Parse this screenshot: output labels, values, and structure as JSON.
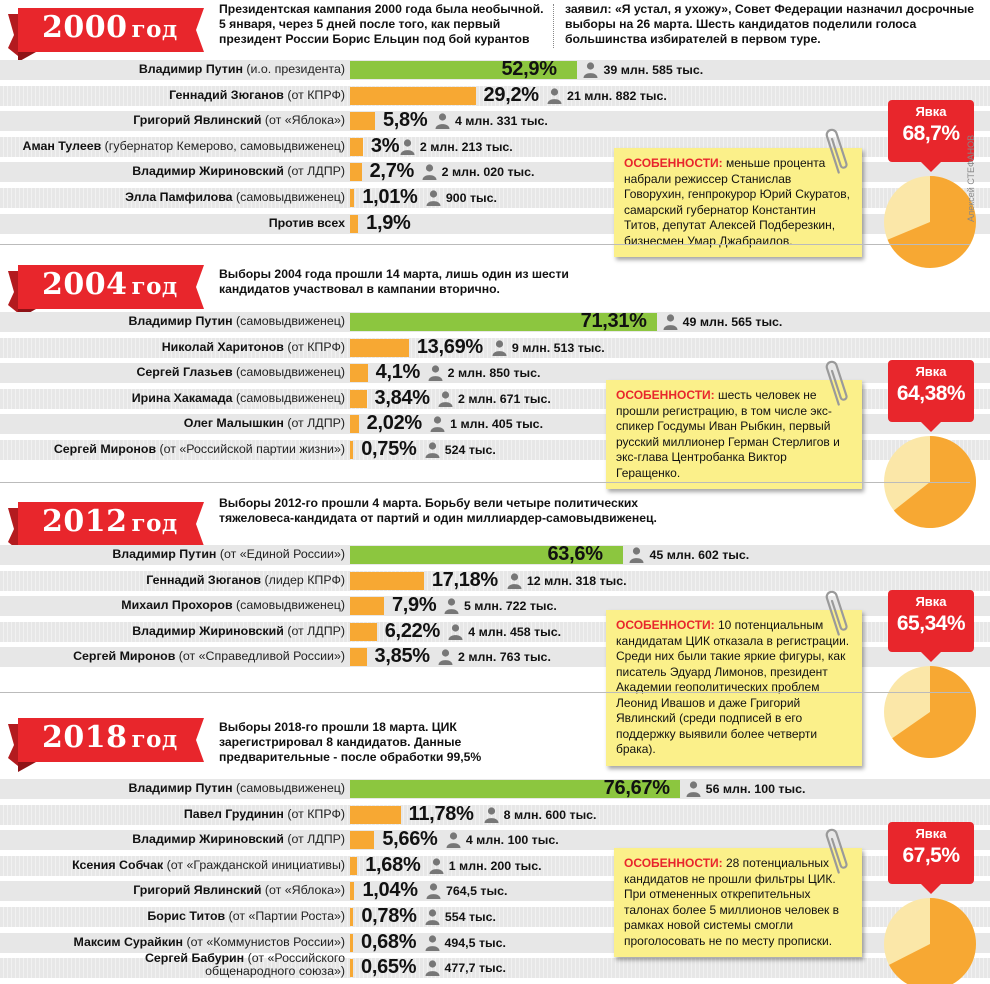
{
  "credit": "Алексей СТЕФАНОВ",
  "colors": {
    "red": "#e8262c",
    "green": "#8cc63f",
    "orange": "#f7a833",
    "note": "#fbf08a"
  },
  "elections": [
    {
      "year": "2000",
      "year_suffix": "год",
      "intro_left": "Президентская кампания 2000 года была необычной. 5 января, через 5 дней после того, как первый президент России Борис Ельцин под бой курантов",
      "intro_right": "заявил: «Я устал, я ухожу», Совет Федерации назначил досрочные выборы на 26 марта. Шесть кандидатов поделили голоса большинства избирателей в первом туре.",
      "turnout_label": "Явка",
      "turnout_value": "68,7%",
      "turnout_fraction": 0.687,
      "note_title": "ОСОБЕННОСТИ:",
      "note_text": "меньше процента набрали режиссер Станислав Говорухин, генпрокурор Юрий Скуратов, самарский губернатор Константин Титов, депутат Алексей Подберезкин, бизнесмен Умар Джабраилов.",
      "candidates": [
        {
          "name": "Владимир Путин",
          "note": "(и.о. президента)",
          "pct": 52.9,
          "pct_label": "52,9%",
          "votes": "39 млн. 585 тыс.",
          "winner": true
        },
        {
          "name": "Геннадий Зюганов",
          "note": "(от КПРФ)",
          "pct": 29.2,
          "pct_label": "29,2%",
          "votes": "21 млн. 882 тыс."
        },
        {
          "name": "Григорий Явлинский",
          "note": "(от «Яблока»)",
          "pct": 5.8,
          "pct_label": "5,8%",
          "votes": "4 млн. 331 тыс."
        },
        {
          "name": "Аман Тулеев",
          "note": "(губернатор Кемерово, самовыдвиженец)",
          "pct": 3,
          "pct_label": "3%",
          "votes": "2 млн. 213 тыс."
        },
        {
          "name": "Владимир Жириновский",
          "note": "(от ЛДПР)",
          "pct": 2.7,
          "pct_label": "2,7%",
          "votes": "2 млн. 020 тыс."
        },
        {
          "name": "Элла Памфилова",
          "note": "(самовыдвиженец)",
          "pct": 1.01,
          "pct_label": "1,01%",
          "votes": "900 тыс."
        },
        {
          "name": "Против всех",
          "note": "",
          "pct": 1.9,
          "pct_label": "1,9%",
          "votes": ""
        }
      ]
    },
    {
      "year": "2004",
      "year_suffix": "год",
      "intro_left": "Выборы 2004 года прошли 14 марта, лишь один из шести кандидатов участвовал в кампании вторично.",
      "intro_right": "",
      "turnout_label": "Явка",
      "turnout_value": "64,38%",
      "turnout_fraction": 0.6438,
      "note_title": "ОСОБЕННОСТИ:",
      "note_text": "шесть человек не прошли регистрацию, в том числе экс-спикер Госдумы Иван Рыбкин, первый русский миллионер Герман Стерлигов и экс-глава Центробанка Виктор Геращенко.",
      "candidates": [
        {
          "name": "Владимир Путин",
          "note": "(самовыдвиженец)",
          "pct": 71.31,
          "pct_label": "71,31%",
          "votes": "49 млн. 565 тыс.",
          "winner": true
        },
        {
          "name": "Николай Харитонов",
          "note": "(от КПРФ)",
          "pct": 13.69,
          "pct_label": "13,69%",
          "votes": "9 млн. 513 тыс."
        },
        {
          "name": "Сергей Глазьев",
          "note": "(самовыдвиженец)",
          "pct": 4.1,
          "pct_label": "4,1%",
          "votes": "2 млн. 850 тыс."
        },
        {
          "name": "Ирина Хакамада",
          "note": "(самовыдвиженец)",
          "pct": 3.84,
          "pct_label": "3,84%",
          "votes": "2 млн. 671 тыс."
        },
        {
          "name": "Олег Малышкин",
          "note": "(от ЛДПР)",
          "pct": 2.02,
          "pct_label": "2,02%",
          "votes": "1 млн. 405 тыс."
        },
        {
          "name": "Сергей Миронов",
          "note": "(от «Российской партии жизни»)",
          "pct": 0.75,
          "pct_label": "0,75%",
          "votes": "524 тыс."
        }
      ]
    },
    {
      "year": "2012",
      "year_suffix": "год",
      "intro_left": "Выборы 2012-го прошли 4 марта. Борьбу вели четыре политических тяжеловеса-кандидата от партий и один миллиардер-самовыдвиженец.",
      "intro_right": "",
      "turnout_label": "Явка",
      "turnout_value": "65,34%",
      "turnout_fraction": 0.6534,
      "note_title": "ОСОБЕННОСТИ:",
      "note_text": "10 потенциальным кандидатам ЦИК отказала в регистрации. Среди них были такие яркие фигуры, как писатель Эдуард Лимонов, президент Академии геополитических проблем Леонид Ивашов и даже Григорий Явлинский (среди подписей в его поддержку выявили более четверти брака).",
      "candidates": [
        {
          "name": "Владимир Путин",
          "note": "(от «Единой России»)",
          "pct": 63.6,
          "pct_label": "63,6%",
          "votes": "45 млн. 602 тыс.",
          "winner": true
        },
        {
          "name": "Геннадий Зюганов",
          "note": "(лидер КПРФ)",
          "pct": 17.18,
          "pct_label": "17,18%",
          "votes": "12 млн. 318 тыс."
        },
        {
          "name": "Михаил Прохоров",
          "note": "(самовыдвиженец)",
          "pct": 7.9,
          "pct_label": "7,9%",
          "votes": "5 млн. 722 тыс."
        },
        {
          "name": "Владимир Жириновский",
          "note": "(от ЛДПР)",
          "pct": 6.22,
          "pct_label": "6,22%",
          "votes": "4 млн. 458 тыс."
        },
        {
          "name": "Сергей Миронов",
          "note": "(от «Справедливой России»)",
          "pct": 3.85,
          "pct_label": "3,85%",
          "votes": "2 млн. 763 тыс."
        }
      ]
    },
    {
      "year": "2018",
      "year_suffix": "год",
      "intro_left": "Выборы 2018-го прошли 18 марта. ЦИК зарегистрировал 8 кандидатов. Данные предварительные - после обработки 99,5%",
      "intro_right": "",
      "turnout_label": "Явка",
      "turnout_value": "67,5%",
      "turnout_fraction": 0.675,
      "note_title": "ОСОБЕННОСТИ:",
      "note_text": "28 потенциальных кандидатов не прошли фильтры ЦИК. При отмененных открепительных талонах более 5 миллионов человек в рамках новой системы смогли проголосовать не по месту прописки.",
      "candidates": [
        {
          "name": "Владимир Путин",
          "note": "(самовыдвиженец)",
          "pct": 76.67,
          "pct_label": "76,67%",
          "votes": "56 млн. 100 тыс.",
          "winner": true
        },
        {
          "name": "Павел Грудинин",
          "note": "(от КПРФ)",
          "pct": 11.78,
          "pct_label": "11,78%",
          "votes": "8 млн. 600 тыс."
        },
        {
          "name": "Владимир Жириновский",
          "note": "(от ЛДПР)",
          "pct": 5.66,
          "pct_label": "5,66%",
          "votes": "4 млн. 100 тыс."
        },
        {
          "name": "Ксения Собчак",
          "note": "(от «Гражданской инициативы)",
          "pct": 1.68,
          "pct_label": "1,68%",
          "votes": "1 млн. 200 тыс."
        },
        {
          "name": "Григорий Явлинский",
          "note": "(от «Яблока»)",
          "pct": 1.04,
          "pct_label": "1,04%",
          "votes": "764,5 тыс."
        },
        {
          "name": "Борис Титов",
          "note": "(от «Партии Роста»)",
          "pct": 0.78,
          "pct_label": "0,78%",
          "votes": "554 тыс."
        },
        {
          "name": "Максим Сурайкин",
          "note": "(от «Коммунистов России»)",
          "pct": 0.68,
          "pct_label": "0,68%",
          "votes": "494,5 тыс."
        },
        {
          "name": "Сергей Бабурин",
          "note": "(от «Российского общенародного союза»)",
          "pct": 0.65,
          "pct_label": "0,65%",
          "votes": "477,7 тыс."
        }
      ]
    }
  ],
  "chart_data": [
    {
      "type": "bar",
      "title": "2000 год",
      "categories": [
        "Владимир Путин",
        "Геннадий Зюганов",
        "Григорий Явлинский",
        "Аман Тулеев",
        "Владимир Жириновский",
        "Элла Памфилова",
        "Против всех"
      ],
      "values": [
        52.9,
        29.2,
        5.8,
        3,
        2.7,
        1.01,
        1.9
      ]
    },
    {
      "type": "bar",
      "title": "2004 год",
      "categories": [
        "Владимир Путин",
        "Николай Харитонов",
        "Сергей Глазьев",
        "Ирина Хакамада",
        "Олег Малышкин",
        "Сергей Миронов"
      ],
      "values": [
        71.31,
        13.69,
        4.1,
        3.84,
        2.02,
        0.75
      ]
    },
    {
      "type": "bar",
      "title": "2012 год",
      "categories": [
        "Владимир Путин",
        "Геннадий Зюганов",
        "Михаил Прохоров",
        "Владимир Жириновский",
        "Сергей Миронов"
      ],
      "values": [
        63.6,
        17.18,
        7.9,
        6.22,
        3.85
      ]
    },
    {
      "type": "bar",
      "title": "2018 год",
      "categories": [
        "Владимир Путин",
        "Павел Грудинин",
        "Владимир Жириновский",
        "Ксения Собчак",
        "Григорий Явлинский",
        "Борис Титов",
        "Максим Сурайкин",
        "Сергей Бабурин"
      ],
      "values": [
        76.67,
        11.78,
        5.66,
        1.68,
        1.04,
        0.78,
        0.68,
        0.65
      ]
    },
    {
      "type": "pie",
      "title": "Явка",
      "categories": [
        "2000",
        "2004",
        "2012",
        "2018"
      ],
      "values": [
        68.7,
        64.38,
        65.34,
        67.5
      ]
    }
  ]
}
